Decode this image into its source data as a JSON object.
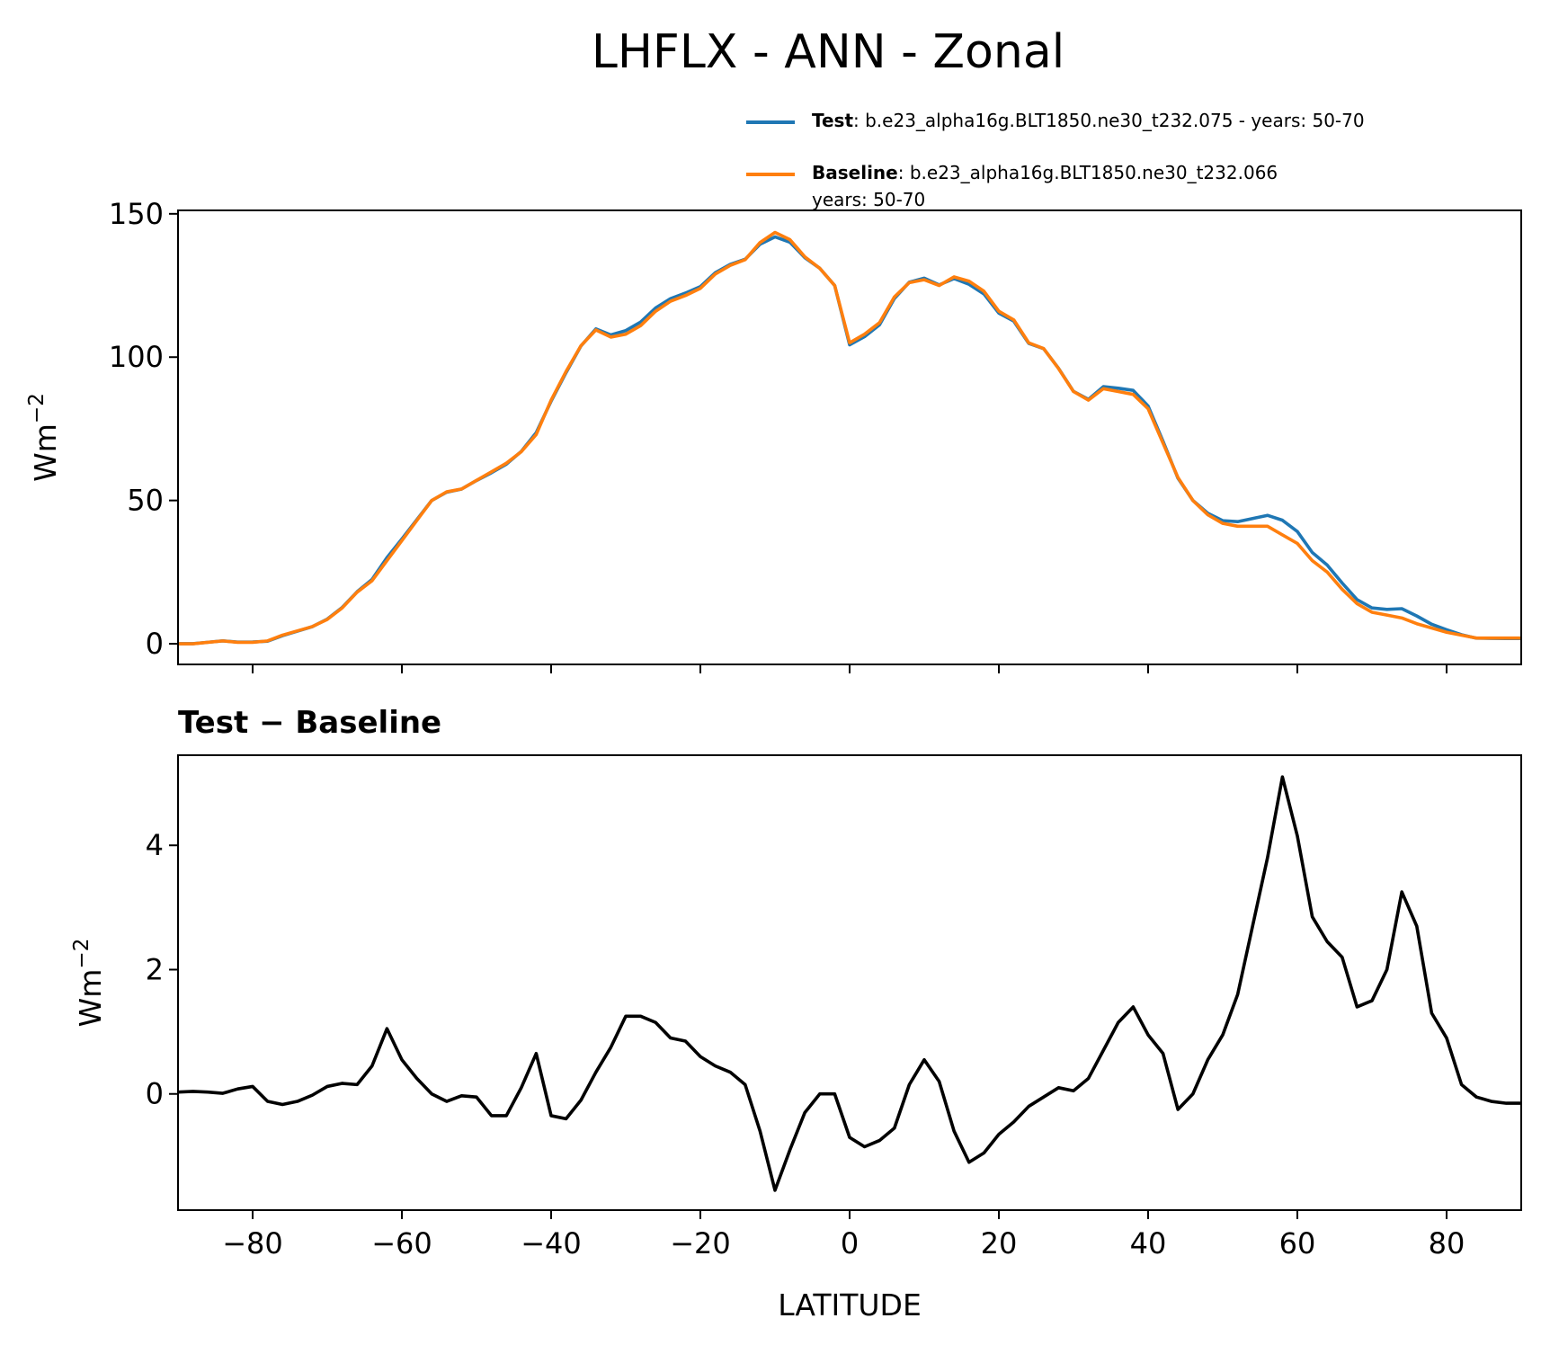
{
  "chart_data": [
    {
      "type": "line",
      "title": "LHFLX - ANN - Zonal",
      "ylabel": {
        "text": "Wm",
        "sup": "−2"
      },
      "x": [
        -90,
        -88,
        -86,
        -84,
        -82,
        -80,
        -78,
        -76,
        -74,
        -72,
        -70,
        -68,
        -66,
        -64,
        -62,
        -60,
        -58,
        -56,
        -54,
        -52,
        -50,
        -48,
        -46,
        -44,
        -42,
        -40,
        -38,
        -36,
        -34,
        -32,
        -30,
        -28,
        -26,
        -24,
        -22,
        -20,
        -18,
        -16,
        -14,
        -12,
        -10,
        -8,
        -6,
        -4,
        -2,
        0,
        2,
        4,
        6,
        8,
        10,
        12,
        14,
        16,
        18,
        20,
        22,
        24,
        26,
        28,
        30,
        32,
        34,
        36,
        38,
        40,
        42,
        44,
        46,
        48,
        50,
        52,
        54,
        56,
        58,
        60,
        62,
        64,
        66,
        68,
        70,
        72,
        74,
        76,
        78,
        80,
        82,
        84,
        86,
        88,
        90
      ],
      "series": [
        {
          "name": "Test",
          "description": [
            ": b.e23_alpha16g.BLT1850.ne30_t232.075 - years: 50-70"
          ],
          "color": "#1f77b4",
          "values": [
            0.03,
            0.04,
            0.53,
            1.01,
            0.58,
            0.62,
            0.88,
            2.83,
            4.38,
            5.98,
            8.62,
            12.67,
            18.15,
            22.45,
            30.05,
            36.55,
            43.25,
            50,
            52.88,
            53.97,
            56.95,
            59.65,
            62.65,
            67.1,
            73.65,
            84.65,
            94.6,
            103.9,
            109.85,
            107.75,
            109.25,
            112.25,
            117.15,
            120.4,
            122.35,
            124.6,
            129.45,
            132.35,
            134.15,
            139.4,
            141.95,
            140.1,
            134.7,
            131,
            125,
            104.3,
            107.15,
            111.25,
            120.45,
            126.15,
            127.55,
            125.2,
            127.4,
            125.4,
            122.05,
            115.35,
            112.55,
            104.8,
            102.95,
            96.1,
            88.05,
            85.25,
            89.7,
            89.15,
            88.4,
            82.95,
            70.65,
            57.75,
            50,
            45.55,
            42.95,
            42.6,
            43.7,
            44.8,
            43.1,
            39.15,
            31.85,
            27.45,
            21.2,
            15.4,
            12.5,
            12,
            12.25,
            9.7,
            6.8,
            4.9,
            3.15,
            1.95,
            1.88,
            1.85,
            1.85
          ]
        },
        {
          "name": "Baseline",
          "description": [
            ": b.e23_alpha16g.BLT1850.ne30_t232.066",
            "years: 50-70"
          ],
          "color": "#ff7f0e",
          "values": [
            0,
            0,
            0.5,
            1,
            0.5,
            0.5,
            1,
            3,
            4.5,
            6,
            8.5,
            12.5,
            18,
            22,
            29,
            36,
            43,
            50,
            53,
            54,
            57,
            60,
            63,
            67,
            73,
            85,
            95,
            104,
            109.5,
            107,
            108,
            111,
            116,
            119.5,
            121.5,
            124,
            129,
            132,
            134,
            140,
            143.5,
            141,
            135,
            131,
            125,
            105,
            108,
            112,
            121,
            126,
            127,
            125,
            128,
            126.5,
            123,
            116,
            113,
            105,
            103,
            96,
            88,
            85,
            89,
            88,
            87,
            82,
            70,
            58,
            50,
            45,
            42,
            41,
            41,
            41,
            38,
            35,
            29,
            25,
            19,
            14,
            11,
            10,
            9,
            7,
            5.5,
            4,
            3,
            2,
            2,
            2,
            2
          ]
        }
      ],
      "xlim": [
        -90,
        90
      ],
      "xticks": [
        -80,
        -60,
        -40,
        -20,
        0,
        20,
        40,
        60,
        80
      ],
      "ylim": [
        -7.2,
        151.2
      ],
      "yticks": [
        0,
        50,
        100,
        150
      ]
    },
    {
      "type": "line",
      "title": "Test − Baseline",
      "xlabel": "LATITUDE",
      "ylabel": {
        "text": "Wm",
        "sup": "−2"
      },
      "x": [
        -90,
        -88,
        -86,
        -84,
        -82,
        -80,
        -78,
        -76,
        -74,
        -72,
        -70,
        -68,
        -66,
        -64,
        -62,
        -60,
        -58,
        -56,
        -54,
        -52,
        -50,
        -48,
        -46,
        -44,
        -42,
        -40,
        -38,
        -36,
        -34,
        -32,
        -30,
        -28,
        -26,
        -24,
        -22,
        -20,
        -18,
        -16,
        -14,
        -12,
        -10,
        -8,
        -6,
        -4,
        -2,
        0,
        2,
        4,
        6,
        8,
        10,
        12,
        14,
        16,
        18,
        20,
        22,
        24,
        26,
        28,
        30,
        32,
        34,
        36,
        38,
        40,
        42,
        44,
        46,
        48,
        50,
        52,
        54,
        56,
        58,
        60,
        62,
        64,
        66,
        68,
        70,
        72,
        74,
        76,
        78,
        80,
        82,
        84,
        86,
        88,
        90
      ],
      "series": [
        {
          "color": "#000000",
          "values": [
            0.03,
            0.04,
            0.03,
            0.01,
            0.08,
            0.12,
            -0.12,
            -0.17,
            -0.12,
            -0.02,
            0.12,
            0.17,
            0.15,
            0.45,
            1.05,
            0.55,
            0.25,
            0.0,
            -0.12,
            -0.03,
            -0.05,
            -0.35,
            -0.35,
            0.1,
            0.65,
            -0.35,
            -0.4,
            -0.1,
            0.35,
            0.75,
            1.25,
            1.25,
            1.15,
            0.9,
            0.85,
            0.6,
            0.45,
            0.35,
            0.15,
            -0.6,
            -1.55,
            -0.9,
            -0.3,
            0.0,
            0.0,
            -0.7,
            -0.85,
            -0.75,
            -0.55,
            0.15,
            0.55,
            0.2,
            -0.6,
            -1.1,
            -0.95,
            -0.65,
            -0.45,
            -0.2,
            -0.05,
            0.1,
            0.05,
            0.25,
            0.7,
            1.15,
            1.4,
            0.95,
            0.65,
            -0.25,
            0.0,
            0.55,
            0.95,
            1.6,
            2.7,
            3.8,
            5.1,
            4.15,
            2.85,
            2.45,
            2.2,
            1.4,
            1.5,
            2.0,
            3.25,
            2.7,
            1.3,
            0.9,
            0.15,
            -0.05,
            -0.12,
            -0.15,
            -0.15
          ]
        }
      ],
      "xlim": [
        -90,
        90
      ],
      "xticks": [
        {
          "value": -80,
          "label": "−80"
        },
        {
          "value": -60,
          "label": "−60"
        },
        {
          "value": -40,
          "label": "−40"
        },
        {
          "value": -20,
          "label": "−20"
        },
        0,
        20,
        40,
        60,
        80
      ],
      "ylim": [
        -1.87,
        5.45
      ],
      "yticks": [
        0,
        2,
        4
      ]
    }
  ]
}
